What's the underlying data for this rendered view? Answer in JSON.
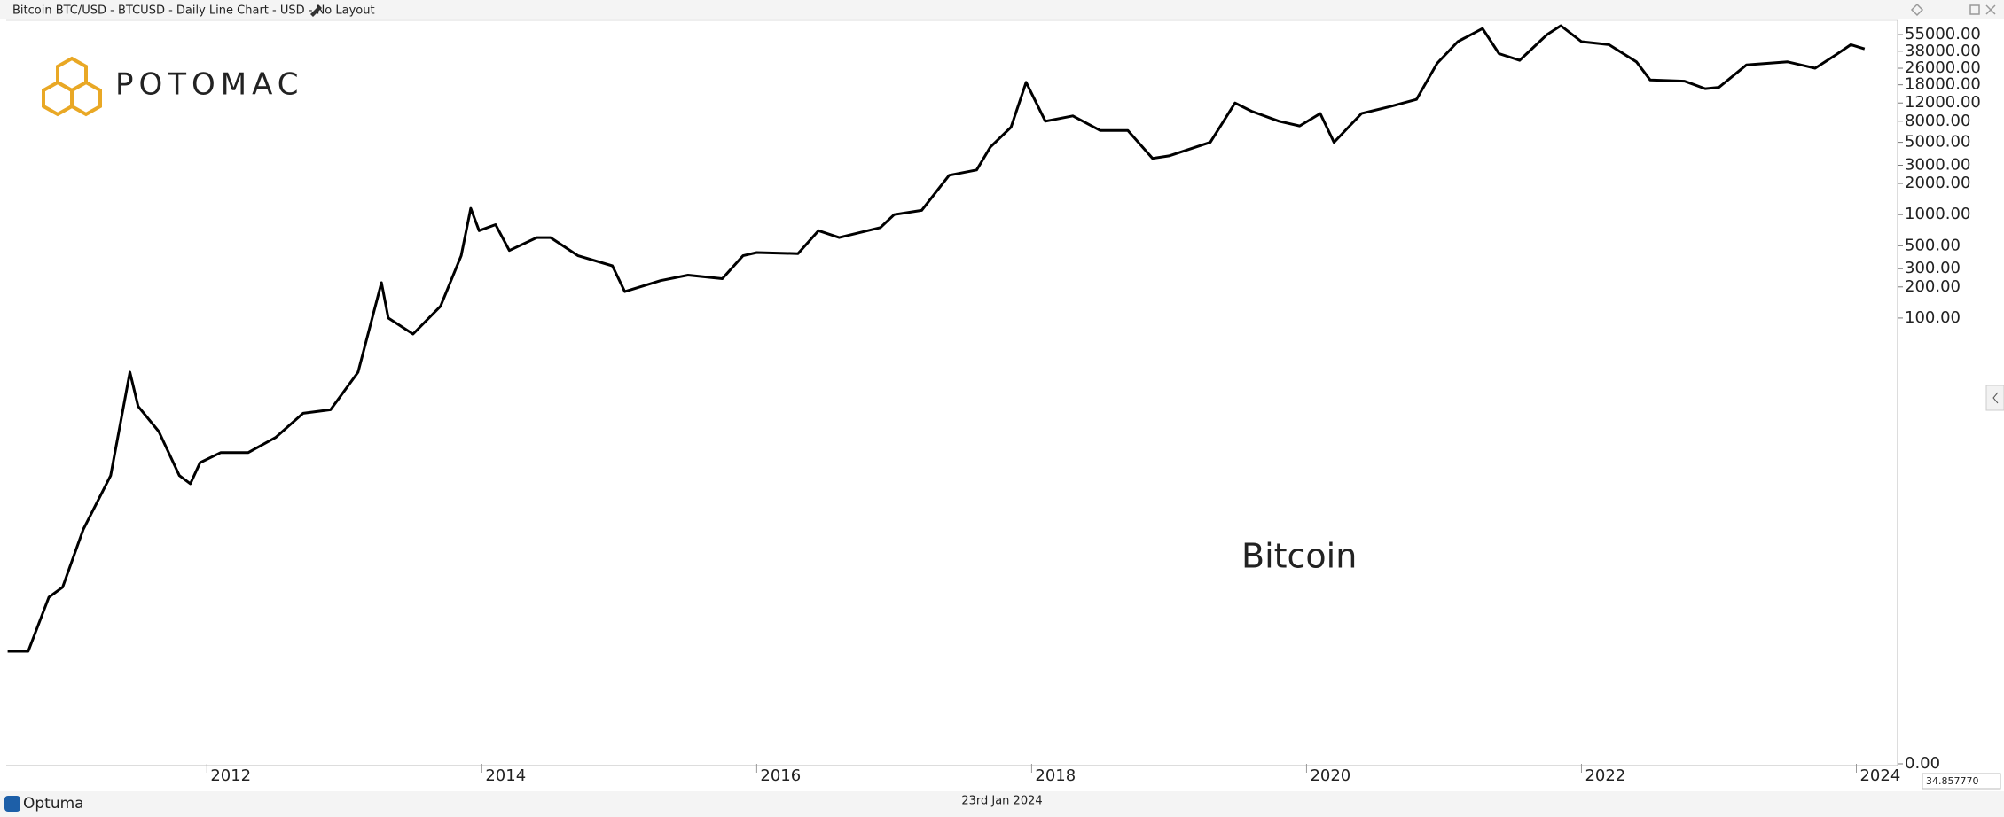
{
  "window": {
    "title": "Bitcoin BTC/USD - BTCUSD - Daily Line Chart - USD - No Layout",
    "brand": "POTOMAC",
    "footer_brand": "Optuma",
    "footer_date": "23rd Jan 2024",
    "cursor_value": "34.857770"
  },
  "chart_data": {
    "type": "line",
    "annotation": "Bitcoin",
    "color": "#000000",
    "log_scale": true,
    "x": [
      2010.55,
      2010.7,
      2010.85,
      2010.95,
      2011.1,
      2011.3,
      2011.44,
      2011.5,
      2011.65,
      2011.8,
      2011.88,
      2011.95,
      2012.1,
      2012.3,
      2012.5,
      2012.7,
      2012.9,
      2013.1,
      2013.27,
      2013.32,
      2013.5,
      2013.7,
      2013.85,
      2013.92,
      2013.98,
      2014.1,
      2014.2,
      2014.4,
      2014.5,
      2014.7,
      2014.95,
      2015.04,
      2015.3,
      2015.5,
      2015.75,
      2015.9,
      2016.0,
      2016.3,
      2016.45,
      2016.6,
      2016.9,
      2017.0,
      2017.2,
      2017.4,
      2017.6,
      2017.7,
      2017.85,
      2017.96,
      2018.1,
      2018.3,
      2018.5,
      2018.7,
      2018.88,
      2019.0,
      2019.3,
      2019.48,
      2019.6,
      2019.8,
      2019.95,
      2020.1,
      2020.2,
      2020.4,
      2020.6,
      2020.8,
      2020.95,
      2021.1,
      2021.28,
      2021.4,
      2021.55,
      2021.75,
      2021.85,
      2022.0,
      2022.2,
      2022.4,
      2022.5,
      2022.75,
      2022.9,
      2023.0,
      2023.2,
      2023.5,
      2023.7,
      2023.85,
      2023.96,
      2024.06
    ],
    "values": [
      0.06,
      0.06,
      0.2,
      0.25,
      0.9,
      3,
      30,
      14,
      8,
      3,
      2.5,
      4,
      5,
      5,
      7,
      12,
      13,
      30,
      220,
      100,
      70,
      130,
      400,
      1150,
      700,
      800,
      450,
      600,
      600,
      400,
      320,
      180,
      230,
      260,
      240,
      400,
      430,
      420,
      700,
      600,
      750,
      1000,
      1100,
      2400,
      2700,
      4500,
      7000,
      19000,
      8000,
      9000,
      6500,
      6500,
      3500,
      3700,
      5000,
      12000,
      10000,
      8000,
      7200,
      9500,
      5000,
      9500,
      11000,
      13000,
      29000,
      47000,
      63000,
      36000,
      31000,
      55000,
      67000,
      47000,
      44000,
      30000,
      20000,
      19500,
      16500,
      17000,
      28000,
      30000,
      26000,
      35000,
      44000,
      40000
    ],
    "xlim": [
      2010.54,
      2024.3
    ],
    "xticks": [
      2012,
      2014,
      2016,
      2018,
      2020,
      2022,
      2024
    ],
    "ylim": [
      0.0049,
      74000
    ],
    "yticks": [
      {
        "value": 55000,
        "label": "55000.00"
      },
      {
        "value": 38000,
        "label": "38000.00"
      },
      {
        "value": 26000,
        "label": "26000.00"
      },
      {
        "value": 18000,
        "label": "18000.00"
      },
      {
        "value": 12000,
        "label": "12000.00"
      },
      {
        "value": 8000,
        "label": "8000.00"
      },
      {
        "value": 5000,
        "label": "5000.00"
      },
      {
        "value": 3000,
        "label": "3000.00"
      },
      {
        "value": 2000,
        "label": "2000.00"
      },
      {
        "value": 1000,
        "label": "1000.00"
      },
      {
        "value": 500,
        "label": "500.00"
      },
      {
        "value": 300,
        "label": "300.00"
      },
      {
        "value": 200,
        "label": "200.00"
      },
      {
        "value": 100,
        "label": "100.00"
      },
      {
        "value": 0.0049,
        "label": "0.00"
      }
    ]
  }
}
